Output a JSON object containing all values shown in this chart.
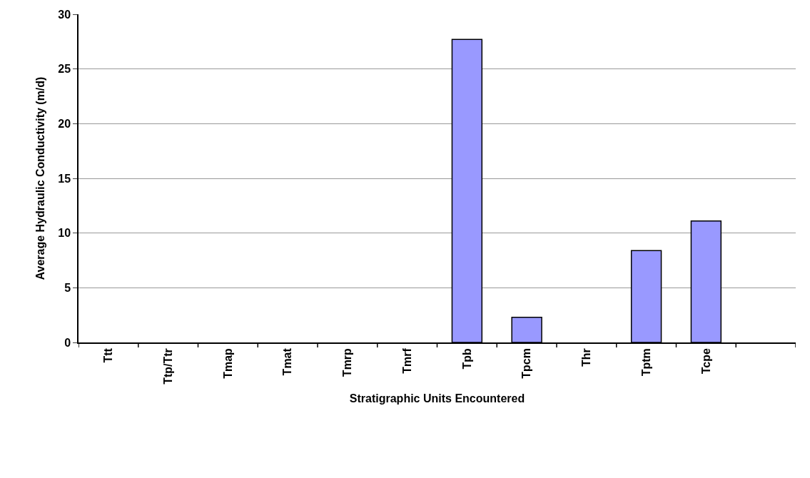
{
  "chart_data": {
    "type": "bar",
    "xlabel": "Stratigraphic Units Encountered",
    "ylabel": "Average Hydraulic Conductivity (m/d)",
    "categories": [
      "Ttt",
      "Ttp/Ttr",
      "Tmap",
      "Tmat",
      "Tmrp",
      "Tmrf",
      "Tpb",
      "Tpcm",
      "Thr",
      "Tptm",
      "Tcpe",
      null
    ],
    "values": [
      null,
      null,
      null,
      null,
      null,
      null,
      27.7,
      2.3,
      null,
      8.4,
      11.1,
      null
    ],
    "color": "#9999ff",
    "ylim": [
      0,
      30
    ],
    "yticks": [
      0,
      5,
      10,
      15,
      20,
      25,
      30
    ],
    "grid": "y",
    "legend": false
  }
}
